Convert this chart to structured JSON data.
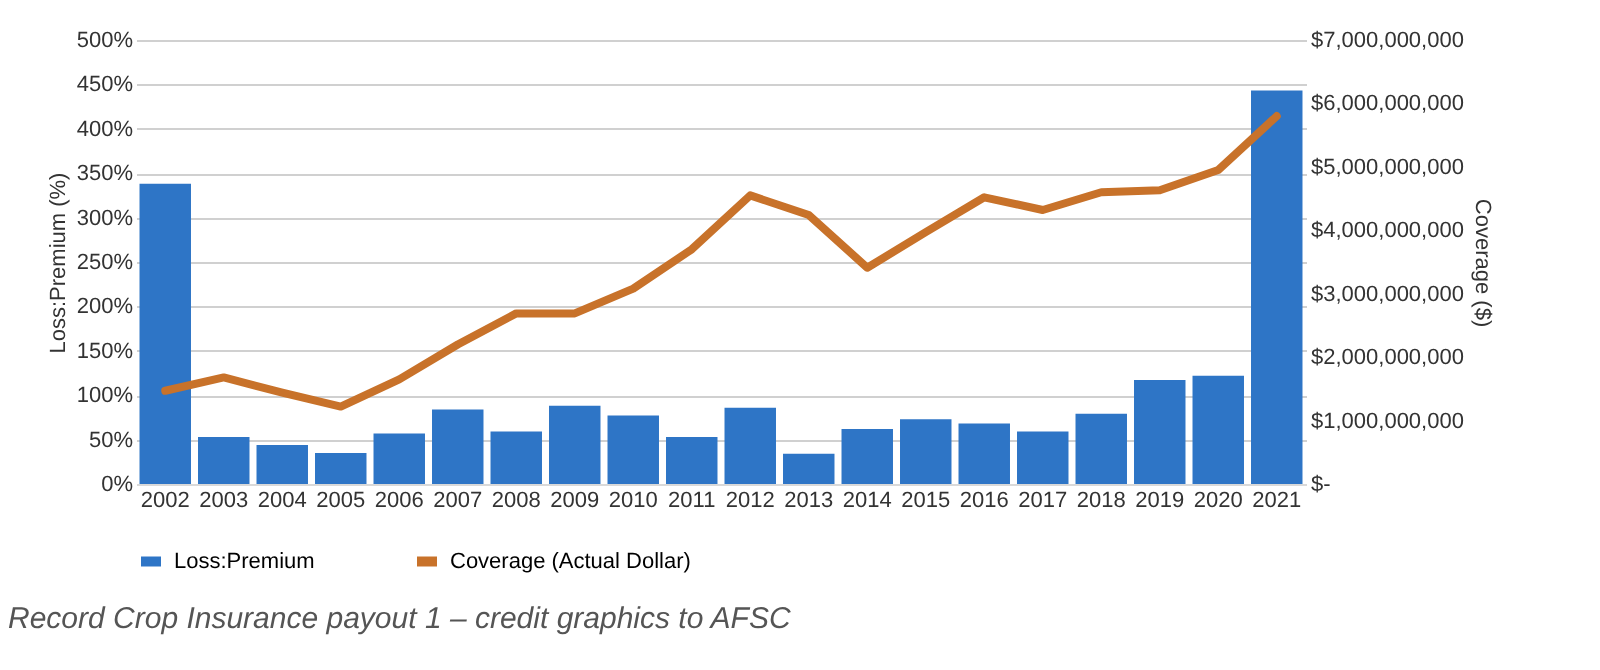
{
  "chart_data": {
    "type": "bar",
    "categories": [
      "2002",
      "2003",
      "2004",
      "2005",
      "2006",
      "2007",
      "2008",
      "2009",
      "2010",
      "2011",
      "2012",
      "2013",
      "2014",
      "2015",
      "2016",
      "2017",
      "2018",
      "2019",
      "2020",
      "2021"
    ],
    "series": [
      {
        "name": "Loss:Premium",
        "color": "#2e75c6",
        "values": [
          338,
          53,
          44,
          35,
          57,
          84,
          59,
          88,
          77,
          53,
          86,
          34,
          62,
          73,
          68,
          59,
          79,
          117,
          122,
          443
        ]
      },
      {
        "name": "Coverage (Actual Dollar)",
        "type": "line",
        "axis": "y2",
        "color": "#c8722a",
        "values": [
          1470000000,
          1680000000,
          1440000000,
          1220000000,
          1650000000,
          2200000000,
          2690000000,
          2690000000,
          3080000000,
          3700000000,
          4550000000,
          4240000000,
          3410000000,
          3970000000,
          4520000000,
          4320000000,
          4600000000,
          4630000000,
          4950000000,
          5800000000
        ]
      }
    ],
    "ylabel": "Loss:Premium (%)",
    "y2label": "Coverage ($)",
    "ylim": [
      0,
      500
    ],
    "yticks": [
      {
        "value": 0,
        "label": "0%"
      },
      {
        "value": 50,
        "label": "50%"
      },
      {
        "value": 100,
        "label": "100%"
      },
      {
        "value": 150,
        "label": "150%"
      },
      {
        "value": 200,
        "label": "200%"
      },
      {
        "value": 250,
        "label": "250%"
      },
      {
        "value": 300,
        "label": "300%"
      },
      {
        "value": 350,
        "label": "350%"
      },
      {
        "value": 400,
        "label": "400%"
      },
      {
        "value": 450,
        "label": "450%"
      },
      {
        "value": 500,
        "label": "500%"
      }
    ],
    "y2lim": [
      0,
      7000000000
    ],
    "y2ticks": [
      {
        "value": 0,
        "label": "$-"
      },
      {
        "value": 1000000000,
        "label": "$1,000,000,000"
      },
      {
        "value": 2000000000,
        "label": "$2,000,000,000"
      },
      {
        "value": 3000000000,
        "label": "$3,000,000,000"
      },
      {
        "value": 4000000000,
        "label": "$4,000,000,000"
      },
      {
        "value": 5000000000,
        "label": "$5,000,000,000"
      },
      {
        "value": 6000000000,
        "label": "$6,000,000,000"
      },
      {
        "value": 7000000000,
        "label": "$7,000,000,000"
      }
    ],
    "grid": "y",
    "legend": "bottom",
    "line_style": "solid",
    "annotations": [
      "Record Crop Insurance payout 1 – credit graphics to AFSC"
    ]
  }
}
